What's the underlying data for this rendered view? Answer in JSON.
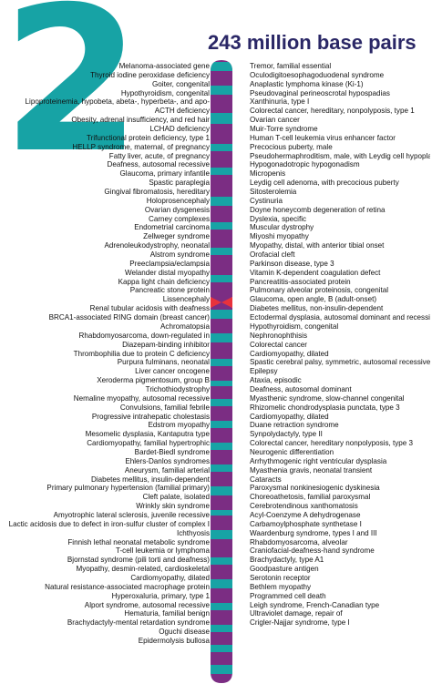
{
  "chromosome": {
    "number": "2",
    "size_label": "243 million base pairs"
  },
  "colors": {
    "teal": "#17a3a5",
    "purple": "#7b2d83",
    "centromere": "#e8323c",
    "title": "#2a2766"
  },
  "left_labels": [
    "Melanoma-associated gene",
    "Thyroid iodine peroxidase deficiency",
    "Goiter, congenital",
    "Hypothyroidism, congenital",
    "Lipoproteinemia, hypobeta, abeta-, hyperbeta-, and apo-",
    "ACTH deficiency",
    "Obesity, adrenal insufficiency, and red hair",
    "LCHAD deficiency",
    "Trifunctional protein deficiency, type 1",
    "HELLP syndrome, maternal, of pregnancy",
    "Fatty liver, acute, of pregnancy",
    "Deafness, autosomal recessive",
    "Glaucoma, primary infantile",
    "Spastic paraplegia",
    "Gingival fibromatosis, hereditary",
    "Holoprosencephaly",
    "Ovarian dysgenesis",
    "Carney complexes",
    "Endometrial carcinoma",
    "Zellweger syndrome",
    "Adrenoleukodystrophy, neonatal",
    "Alstrom syndrome",
    "Preeclampsia/eclampsia",
    "Welander distal myopathy",
    "Kappa light chain deficiency",
    "Pancreatic stone protein",
    "Lissencephaly",
    "Renal tubular acidosis with deafness",
    "BRCA1-associated RING domain (breast cancer)",
    "Achromatopsia",
    "Rhabdomyosarcoma, down-regulated in",
    "Diazepam-binding inhibitor",
    "Thrombophilia due to protein C deficiency",
    "Purpura fulminans, neonatal",
    "Liver cancer oncogene",
    "Xeroderma pigmentosum, group B",
    "Trichothiodystrophy",
    "Nemaline myopathy, autosomal recessive",
    "Convulsions, familial febrile",
    "Progressive intrahepatic cholestasis",
    "Edstrom myopathy",
    "Mesomelic dysplasia, Kantaputra type",
    "Cardiomyopathy, familial hypertrophic",
    "Bardet-Biedl syndrome",
    "Ehlers-Danlos syndromes",
    "Aneurysm, familial arterial",
    "Diabetes mellitus, insulin-dependent",
    "Primary pulmonary hypertension (familial primary)",
    "Cleft palate, isolated",
    "Wrinkly skin syndrome",
    "Amyotrophic lateral sclerosis, juvenile recessive",
    "Lactic acidosis due to defect in iron-sulfur cluster of complex I",
    "Ichthyosis",
    "Finnish lethal neonatal metabolic syndrome",
    "T-cell leukemia or lymphoma",
    "Bjornstad syndrome (pili torti and deafness)",
    "Myopathy, desmin-related, cardioskeletal",
    "Cardiomyopathy, dilated",
    "Natural resistance-associated macrophage protein",
    "Hyperoxaluria, primary, type 1",
    "Alport syndrome, autosomal recessive",
    "Hematuria, familial benign",
    "Brachydactyly-mental retardation syndrome",
    "Oguchi disease",
    "Epidermolysis bullosa"
  ],
  "right_labels": [
    "Tremor, familial essential",
    "Oculodigitoesophagoduodenal syndrome",
    "Anaplastic lymphoma kinase (Ki-1)",
    "Pseudovaginal perineoscrotal hypospadias",
    "Xanthinuria, type I",
    "Colorectal cancer, hereditary, nonpolyposis, type 1",
    "Ovarian cancer",
    "Muir-Torre syndrome",
    "Human T-cell leukemia virus enhancer factor",
    "Precocious puberty, male",
    "Pseudohermaphroditism, male, with Leydig cell hypoplasia",
    "Hypogonadotropic hypogonadism",
    "Micropenis",
    "Leydig cell adenoma, with precocious puberty",
    "Sitosterolemia",
    "Cystinuria",
    "Doyne honeycomb degeneration of retina",
    "Dyslexia, specific",
    "Muscular dystrophy",
    "Miyoshi myopathy",
    "Myopathy, distal, with anterior tibial onset",
    "Orofacial cleft",
    "Parkinson disease, type 3",
    "Vitamin K-dependent coagulation defect",
    "Pancreatitis-associated protein",
    "Pulmonary alveolar proteinosis, congenital",
    "Glaucoma, open angle, B (adult-onset)",
    "Diabetes mellitus, non-insulin-dependent",
    "Ectodermal dysplasia, autosomal dominant and recessive",
    "Hypothyroidism, congenital",
    "Nephronophthisis",
    "Colorectal cancer",
    "Cardiomyopathy, dilated",
    "Spastic cerebral palsy, symmetric, autosomal recessive",
    "Epilepsy",
    "Ataxia, episodic",
    "Deafness, autosomal dominant",
    "Myasthenic syndrome, slow-channel congenital",
    "Rhizomelic chondrodysplasia punctata, type 3",
    "Cardiomyopathy, dilated",
    "Duane retraction syndrome",
    "Synpolydactyly, type II",
    "Colorectal cancer, hereditary nonpolyposis, type 3",
    "Neurogenic differentiation",
    "Arrhythmogenic right ventricular dysplasia",
    "Myasthenia gravis, neonatal transient",
    "Cataracts",
    "Paroxysmal nonkinesiogenic dyskinesia",
    "Choreoathetosis, familial paroxysmal",
    "Cerebrotendinous xanthomatosis",
    "Acyl-Coenzyme A dehydrogenase",
    "Carbamoylphosphate synthetase I",
    "Waardenburg syndrome, types I and III",
    "Rhabdomyosarcoma, alveolar",
    "Craniofacial-deafness-hand syndrome",
    "Brachydactyly, type A1",
    "Goodpasture antigen",
    "Serotonin receptor",
    "Bethlem myopathy",
    "Programmed cell death",
    "Leigh syndrome, French-Canadian type",
    "Ultraviolet damage, repair of",
    "Crigler-Najjar syndrome, type I"
  ]
}
